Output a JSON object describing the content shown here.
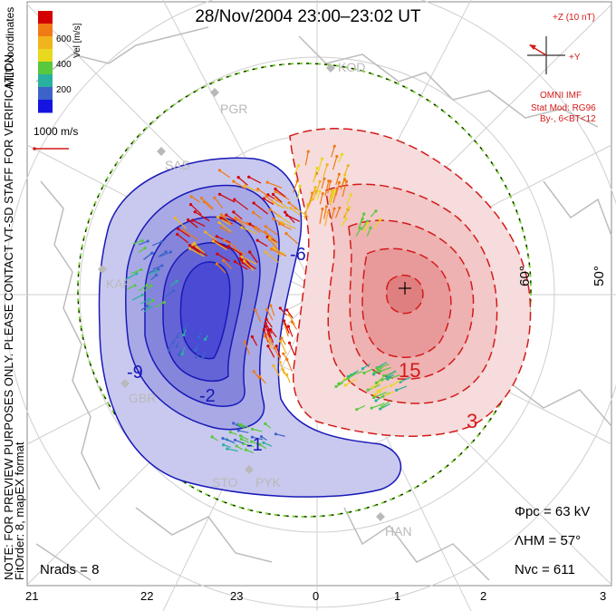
{
  "title": "28/Nov/2004 23:00–23:02 UT",
  "colorbar": {
    "title": "Vel [m/s]",
    "ticks": [
      "600",
      "400",
      "200"
    ],
    "colors": [
      "#d40000",
      "#f07a14",
      "#f0b41e",
      "#e8d81e",
      "#58c83c",
      "#2ab0a0",
      "#3c64c8",
      "#1414e0"
    ]
  },
  "mlt_label": "MLT coordinates",
  "scale_vector": "1000 m/s",
  "note": "NOTE: FOR PREVIEW PURPOSES ONLY. PLEASE CONTACT VT-SD STAFF FOR VERIFICATION.",
  "fit_order": "FitOrder: 8, mapEX format",
  "imf": {
    "z": "+Z (10 nT)",
    "y": "+Y",
    "source": "OMNI IMF",
    "model": "Stat Mod: RG96",
    "condition": "By-, 6<BT<12"
  },
  "stats": {
    "phi_pc": "Φpc = 63 kV",
    "lambda_hm": "ΛHM = 57°",
    "n_vc": "Nvc = 611",
    "n_rads": "Nrads = 8"
  },
  "mlt_ticks": [
    "21",
    "22",
    "23",
    "0",
    "1",
    "2",
    "3"
  ],
  "latitude_labels": [
    "60°",
    "50°"
  ],
  "contour_labels": {
    "positive": [
      "15",
      "3"
    ],
    "negative": [
      "-6",
      "-9",
      "-2",
      "-1"
    ]
  },
  "stations": [
    "KOD",
    "PGR",
    "SAS",
    "KAP",
    "GBR",
    "STO",
    "PYK",
    "HAN"
  ],
  "colors": {
    "negative_cell": "#2a2ad8",
    "positive_cell": "#e23a3a",
    "hm_boundary": "#7ecf3a"
  }
}
